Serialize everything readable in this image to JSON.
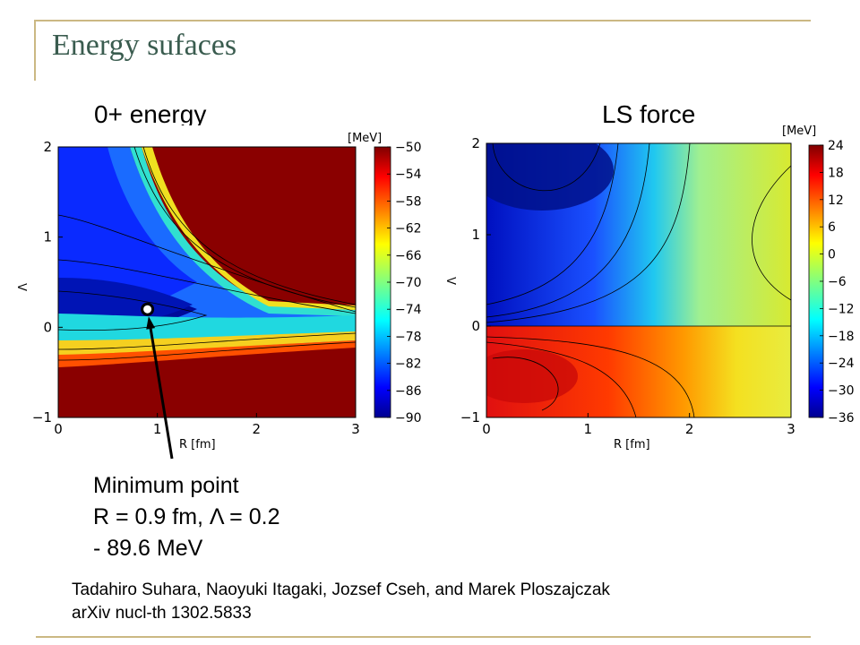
{
  "slide": {
    "title": "Energy sufaces",
    "annotation": {
      "line1": "Minimum point",
      "line2": "R = 0.9 fm, Λ = 0.2",
      "line3": "- 89.6 MeV"
    },
    "citation": {
      "line1": "Tadahiro Suhara, Naoyuki Itagaki, Jozsef Cseh, and Marek Ploszajczak",
      "line2": "arXiv nucl-th 1302.5833"
    }
  },
  "chart_data": [
    {
      "type": "heatmap",
      "title": "0+ energy",
      "xlabel": "R [fm]",
      "ylabel": "Λ",
      "xlim": [
        0,
        3
      ],
      "ylim": [
        -1,
        2
      ],
      "x_ticks": [
        0,
        1,
        2,
        3
      ],
      "y_ticks": [
        -1,
        0,
        1,
        2
      ],
      "colorbar": {
        "label": "[MeV]",
        "range": [
          -90,
          -50
        ],
        "ticks": [
          "−50",
          "−54",
          "−58",
          "−62",
          "−66",
          "−70",
          "−74",
          "−78",
          "−82",
          "−86",
          "−90"
        ]
      },
      "marker": {
        "x": 0.9,
        "y": 0.2,
        "value": -89.6
      }
    },
    {
      "type": "heatmap",
      "title": "LS force",
      "xlabel": "R [fm]",
      "ylabel": "Λ",
      "xlim": [
        0,
        3
      ],
      "ylim": [
        -1,
        2
      ],
      "x_ticks": [
        0,
        1,
        2,
        3
      ],
      "y_ticks": [
        -1,
        0,
        1,
        2
      ],
      "colorbar": {
        "label": "[MeV]",
        "range": [
          -36,
          24
        ],
        "ticks": [
          "24",
          "18",
          "12",
          "6",
          "0",
          "−6",
          "−12",
          "−18",
          "−24",
          "−30",
          "−36"
        ]
      }
    }
  ]
}
